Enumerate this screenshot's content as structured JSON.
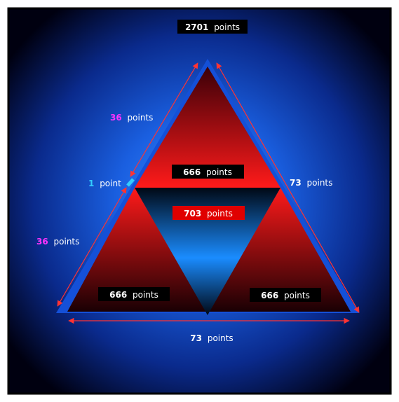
{
  "colors": {
    "frame_bg": "#000000",
    "glow": "#1f6fff",
    "red": "#ff1a1a",
    "red_dark": "#2a0006",
    "blue_light": "#1a8cff",
    "magenta": "#ff33ff",
    "cyan": "#33ccff",
    "white": "#ffffff",
    "arrow": "#ff3333"
  },
  "unit_plural": "points",
  "unit_singular": "point",
  "labels": {
    "total": {
      "value": "2701",
      "unit": "points"
    },
    "top_triangle": {
      "value": "666",
      "unit": "points"
    },
    "inverted_triangle": {
      "value": "703",
      "unit": "points"
    },
    "bottom_left_triangle": {
      "value": "666",
      "unit": "points"
    },
    "bottom_right_triangle": {
      "value": "666",
      "unit": "points"
    },
    "left_side_upper": {
      "value": "36",
      "unit": "points"
    },
    "left_side_lower": {
      "value": "36",
      "unit": "points"
    },
    "left_side_gap": {
      "value": "1",
      "unit": "point"
    },
    "right_side": {
      "value": "73",
      "unit": "points"
    },
    "base": {
      "value": "73",
      "unit": "points"
    }
  }
}
